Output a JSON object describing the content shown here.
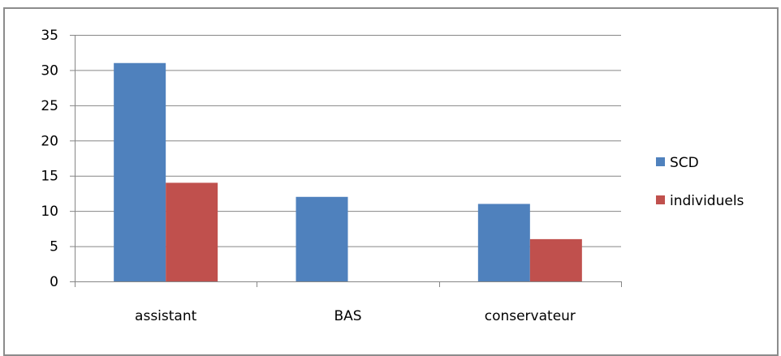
{
  "chart_data": {
    "type": "bar",
    "categories": [
      "assistant",
      "BAS",
      "conservateur"
    ],
    "series": [
      {
        "name": "SCD",
        "color": "#4f81bd",
        "values": [
          31,
          12,
          11
        ]
      },
      {
        "name": "individuels",
        "color": "#c0504d",
        "values": [
          14,
          0,
          6
        ]
      }
    ],
    "ylim": [
      0,
      35
    ],
    "yticks": [
      0,
      5,
      10,
      15,
      20,
      25,
      30,
      35
    ],
    "title": "",
    "xlabel": "",
    "ylabel": "",
    "grid": true,
    "legend": "right"
  }
}
